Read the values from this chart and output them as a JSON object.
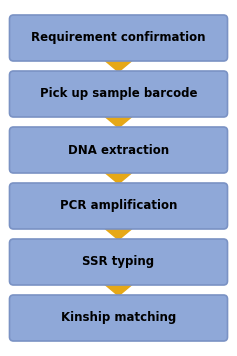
{
  "steps": [
    "Requirement confirmation",
    "Pick up sample barcode",
    "DNA extraction",
    "PCR amplification",
    "SSR typing",
    "Kinship matching"
  ],
  "arrow_color": "#e6a817",
  "text_color": "#000000",
  "background_color": "#ffffff",
  "box_facecolor": "#8fa8d8",
  "box_edgecolor": "#7a92c4",
  "font_size": 8.5,
  "fig_width": 2.37,
  "fig_height": 3.56,
  "dpi": 100
}
